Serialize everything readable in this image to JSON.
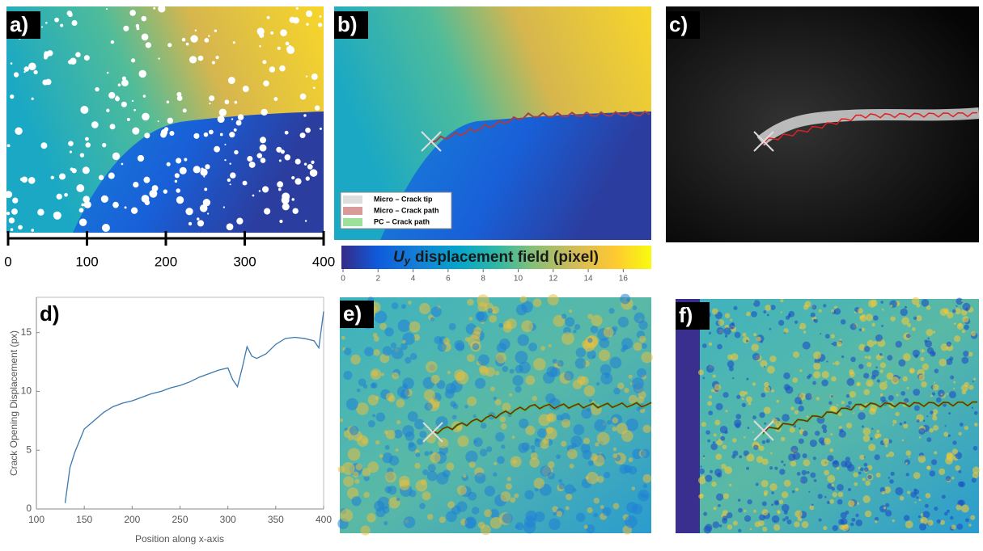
{
  "panels": [
    {
      "label": "a)"
    },
    {
      "label": "b)"
    },
    {
      "label": "c)"
    },
    {
      "label": "d)"
    },
    {
      "label": "e)"
    },
    {
      "label": "f)"
    }
  ],
  "scale_bar": {
    "xlim": [
      0,
      400
    ],
    "xticks": [
      0,
      100,
      200,
      300,
      400
    ]
  },
  "legend": [
    "Micro – Crack tip",
    "Micro – Crack path",
    "PC – Crack path"
  ],
  "colorbar": {
    "symbol": "U",
    "subscript": "y",
    "title": "displacement field (pixel)",
    "lim": [
      0,
      17.6
    ],
    "ticks": [
      0,
      2,
      4,
      6,
      8,
      10,
      12,
      14,
      16
    ]
  },
  "chart_data": {
    "type": "line",
    "ylabel": "Crack Opening Displacement (px)",
    "xlabel": "Position along x-axis",
    "x": [
      130,
      135,
      140,
      145,
      150,
      160,
      170,
      180,
      190,
      200,
      210,
      220,
      230,
      240,
      250,
      260,
      270,
      280,
      290,
      300,
      305,
      310,
      315,
      320,
      325,
      330,
      340,
      350,
      360,
      370,
      380,
      390,
      395,
      400
    ],
    "series": [
      {
        "color": "#3a78b0",
        "values": [
          0.5,
          3.5,
          4.8,
          5.8,
          6.8,
          7.5,
          8.2,
          8.7,
          9.0,
          9.2,
          9.5,
          9.8,
          10.0,
          10.3,
          10.5,
          10.8,
          11.2,
          11.5,
          11.8,
          12.0,
          11.0,
          10.4,
          12.0,
          13.8,
          13.0,
          12.8,
          13.2,
          14.0,
          14.5,
          14.6,
          14.5,
          14.3,
          13.7,
          16.8
        ]
      }
    ],
    "xlim": [
      100,
      400
    ],
    "xticks": [
      100,
      150,
      200,
      250,
      300,
      350,
      400
    ],
    "ylim": [
      0,
      18
    ],
    "yticks": [
      0,
      5,
      10,
      15
    ]
  }
}
